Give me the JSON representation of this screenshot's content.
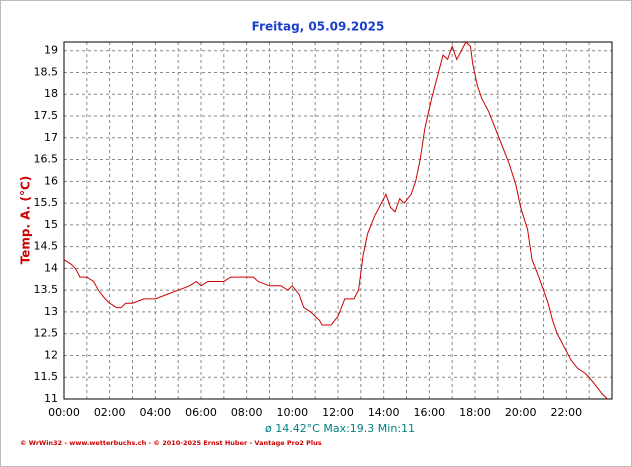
{
  "chart_data": {
    "type": "line",
    "title": "Freitag, 05.09.2025",
    "y_label": "Temp. A. (°C)",
    "annotation": "ø 14.42°C  Max:19.3  Min:11",
    "footer": "© WrWin32 - www.wetterbuchs.ch - © 2010-2025 Ernst Huber - Vantage Pro2 Plus",
    "color": "#cc0000",
    "x": [
      0,
      0.3,
      0.5,
      0.7,
      1.0,
      1.3,
      1.5,
      1.8,
      2.0,
      2.3,
      2.5,
      2.7,
      3.0,
      3.5,
      4.0,
      4.5,
      5.0,
      5.5,
      5.8,
      6.0,
      6.3,
      7.0,
      7.3,
      8.0,
      8.3,
      8.5,
      9.0,
      9.5,
      9.8,
      10.0,
      10.3,
      10.5,
      10.8,
      11.0,
      11.2,
      11.3,
      11.7,
      12.0,
      12.3,
      12.7,
      12.9,
      13.1,
      13.3,
      13.6,
      13.9,
      14.1,
      14.3,
      14.5,
      14.7,
      14.9,
      15.2,
      15.4,
      15.6,
      15.8,
      16.1,
      16.4,
      16.6,
      16.8,
      17.0,
      17.2,
      17.4,
      17.6,
      17.8,
      17.9,
      18.1,
      18.3,
      18.6,
      18.9,
      19.2,
      19.5,
      19.8,
      20.0,
      20.3,
      20.5,
      20.8,
      21.0,
      21.2,
      21.4,
      21.6,
      21.8,
      22.0,
      22.2,
      22.5,
      22.8,
      23.0,
      23.3,
      23.6,
      23.8
    ],
    "values": [
      14.2,
      14.1,
      14.0,
      13.8,
      13.8,
      13.7,
      13.5,
      13.3,
      13.2,
      13.1,
      13.1,
      13.2,
      13.2,
      13.3,
      13.3,
      13.4,
      13.5,
      13.6,
      13.7,
      13.6,
      13.7,
      13.7,
      13.8,
      13.8,
      13.8,
      13.7,
      13.6,
      13.6,
      13.5,
      13.6,
      13.4,
      13.1,
      13.0,
      12.9,
      12.8,
      12.7,
      12.7,
      12.9,
      13.3,
      13.3,
      13.5,
      14.3,
      14.8,
      15.2,
      15.5,
      15.7,
      15.4,
      15.3,
      15.6,
      15.5,
      15.7,
      16.0,
      16.5,
      17.2,
      17.9,
      18.5,
      18.9,
      18.8,
      19.1,
      18.8,
      19.0,
      19.2,
      19.1,
      18.7,
      18.2,
      17.9,
      17.6,
      17.2,
      16.8,
      16.4,
      15.9,
      15.4,
      14.9,
      14.2,
      13.8,
      13.5,
      13.2,
      12.8,
      12.5,
      12.3,
      12.1,
      11.9,
      11.7,
      11.6,
      11.5,
      11.3,
      11.1,
      11.0
    ],
    "xlim": [
      0,
      24
    ],
    "ylim": [
      11,
      19.2
    ],
    "xticks": [
      {
        "value": 0,
        "label": "00:00"
      },
      {
        "value": 2,
        "label": "02:00"
      },
      {
        "value": 4,
        "label": "04:00"
      },
      {
        "value": 6,
        "label": "06:00"
      },
      {
        "value": 8,
        "label": "08:00"
      },
      {
        "value": 10,
        "label": "10:00"
      },
      {
        "value": 12,
        "label": "12:00"
      },
      {
        "value": 14,
        "label": "14:00"
      },
      {
        "value": 16,
        "label": "16:00"
      },
      {
        "value": 18,
        "label": "18:00"
      },
      {
        "value": 20,
        "label": "20:00"
      },
      {
        "value": 22,
        "label": "22:00"
      }
    ],
    "minor_xticks": [
      1,
      3,
      5,
      7,
      9,
      11,
      13,
      15,
      17,
      19,
      21,
      23
    ],
    "yticks": [
      11,
      11.5,
      12,
      12.5,
      13,
      13.5,
      14,
      14.5,
      15,
      15.5,
      16,
      16.5,
      17,
      17.5,
      18,
      18.5,
      19
    ],
    "grid": true
  }
}
